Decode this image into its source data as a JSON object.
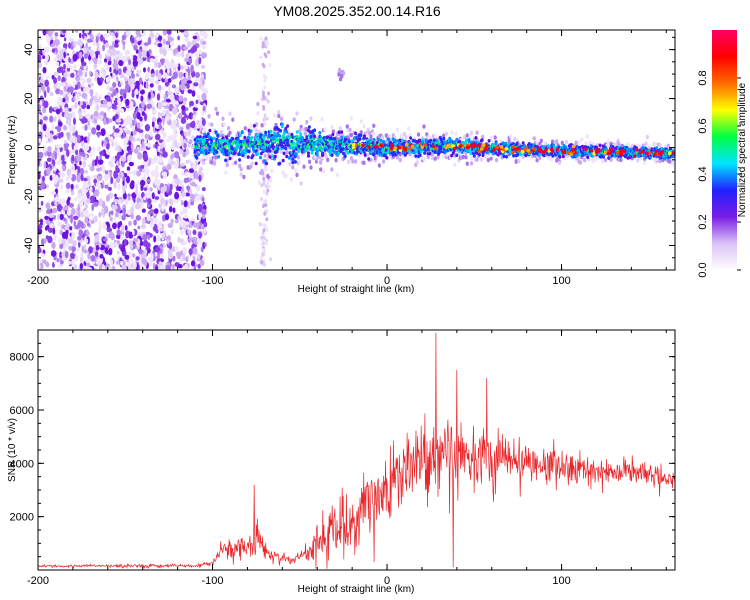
{
  "title": "YM08.2025.352.00.14.R16",
  "chart_data": [
    {
      "type": "heatmap",
      "name": "spectrogram",
      "xlabel": "Height of straight line (km)",
      "ylabel": "Frequency (Hz)",
      "xlim": [
        -200,
        165
      ],
      "ylim": [
        -50,
        48
      ],
      "xticks": [
        -200,
        -100,
        0,
        100
      ],
      "yticks": [
        -40,
        -20,
        0,
        20,
        40
      ],
      "colorbar": {
        "label": "Normalized spectral amplitude",
        "range": [
          0.0,
          1.0
        ],
        "ticks": [
          "0.0",
          "0.2",
          "0.4",
          "0.6",
          "0.8"
        ],
        "tick_values": [
          0.0,
          0.2,
          0.4,
          0.6,
          0.8
        ],
        "colormap": [
          "#ffffff",
          "#d9c2f5",
          "#7a1de6",
          "#2020ff",
          "#00e5ff",
          "#00ff40",
          "#ffff00",
          "#ff6a00",
          "#ff0000",
          "#ff0066"
        ]
      },
      "noise_region_km": [
        -200,
        -108
      ],
      "signal_track": {
        "x_km": [
          -110,
          -80,
          -60,
          -40,
          -20,
          0,
          40,
          80,
          120,
          165
        ],
        "center_hz": [
          1.0,
          1.0,
          2.0,
          1.0,
          1.0,
          0.0,
          0.5,
          -1.0,
          -1.5,
          -2.5
        ],
        "half_width_hz": [
          4,
          5,
          7,
          5,
          4,
          3,
          3,
          2,
          2,
          2
        ]
      },
      "outlier_streak": {
        "x_km": -70,
        "freq_hz": [
          -48,
          45
        ]
      },
      "outlier_blob": {
        "x_km": -26,
        "freq_hz": 30
      }
    },
    {
      "type": "line",
      "name": "snr",
      "xlabel": "Height of straight line (km)",
      "ylabel": "SNR (10 * v/v)",
      "xlim": [
        -200,
        165
      ],
      "ylim": [
        0,
        9000
      ],
      "xticks": [
        -200,
        -100,
        0,
        100
      ],
      "yticks": [
        2000,
        4000,
        6000,
        8000
      ],
      "color": "#e8262a",
      "envelope": {
        "x": [
          -200,
          -110,
          -100,
          -95,
          -85,
          -80,
          -75,
          -70,
          -65,
          -55,
          -45,
          -40,
          -30,
          -20,
          -10,
          0,
          10,
          20,
          25,
          30,
          40,
          50,
          60,
          80,
          100,
          120,
          140,
          165
        ],
        "mean": [
          150,
          160,
          260,
          700,
          900,
          800,
          1100,
          800,
          550,
          350,
          650,
          1000,
          1500,
          2000,
          2600,
          3200,
          3700,
          4000,
          4100,
          4200,
          4300,
          4400,
          4300,
          4200,
          3900,
          3800,
          3700,
          3400
        ],
        "noise": [
          60,
          70,
          100,
          400,
          600,
          500,
          1000,
          500,
          300,
          150,
          500,
          900,
          1300,
          1600,
          1800,
          1700,
          1600,
          1700,
          1900,
          1700,
          1500,
          1400,
          1300,
          1000,
          800,
          700,
          600,
          500
        ]
      },
      "peaks": [
        {
          "x": 28,
          "y": 8900
        },
        {
          "x": 40,
          "y": 7500
        },
        {
          "x": 57,
          "y": 7200
        },
        {
          "x": -76,
          "y": 3200
        }
      ]
    }
  ]
}
